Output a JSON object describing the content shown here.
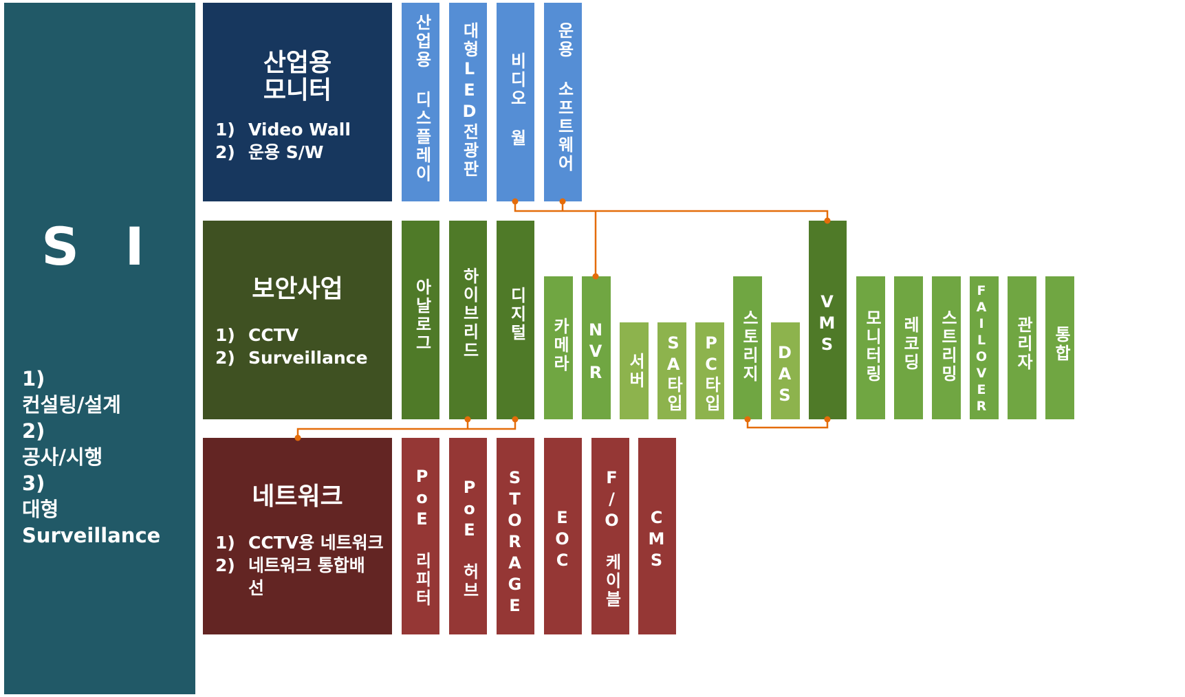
{
  "si": {
    "title": "S I",
    "items": [
      {
        "num": "1)",
        "text": "컨설팅/설계"
      },
      {
        "num": "2)",
        "text": "공사/시행"
      },
      {
        "num": "3)",
        "text": "대형 Surveillance"
      }
    ]
  },
  "monitor": {
    "title_line1": "산업용",
    "title_line2": "모니터",
    "items": [
      {
        "num": "1)",
        "text": "Video Wall"
      },
      {
        "num": "2)",
        "text": "운용 S/W"
      }
    ],
    "columns": [
      "산업용 디스플레이",
      "대형LED전광판",
      "비디오 월",
      "운용 소프트웨어"
    ]
  },
  "security": {
    "title": "보안사업",
    "items": [
      {
        "num": "1)",
        "text": "CCTV"
      },
      {
        "num": "2)",
        "text": "Surveillance"
      }
    ],
    "columns": [
      "아날로그",
      "하이브리드",
      "디지털",
      "카메라",
      "NVR",
      "서버",
      "SA타입",
      "PC타입",
      "스토리지",
      "DAS",
      "VMS",
      "모니터링",
      "레코딩",
      "스트리밍",
      "FAILOVER",
      "관리자",
      "통합"
    ]
  },
  "network": {
    "title": "네트워크",
    "items": [
      {
        "num": "1)",
        "text": "CCTV용 네트워크"
      },
      {
        "num": "2)",
        "text": "네트워크 통합배선"
      }
    ],
    "columns": [
      "PoE 리피터",
      "PoE 허브",
      "STORAGE",
      "EOC",
      "F/O 케이블",
      "CMS"
    ]
  },
  "colors": {
    "si": "#215967",
    "monitor": "#17375e",
    "security": "#3f5122",
    "network": "#632523",
    "monitor_column": "#558ed5",
    "security_column_dark": "#4f7a28",
    "security_column_mid": "#70a642",
    "security_column_light": "#8db34d",
    "network_column": "#953735",
    "connector": "#e46c0a"
  }
}
